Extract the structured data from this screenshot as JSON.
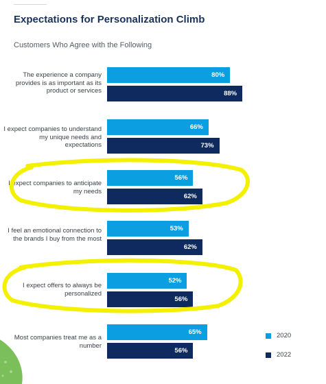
{
  "chart_data": {
    "type": "bar",
    "title": "Expectations for Personalization Climb",
    "subtitle": "Customers Who Agree with the Following",
    "categories": [
      "The experience a company provides is as important as its product or services",
      "I expect companies to understand my unique needs and expectations",
      "I expect companies to anticipate my needs",
      "I feel an emotional connection to the brands I buy from the most",
      "I expect offers to always be personalized",
      "Most companies treat me as a number"
    ],
    "series": [
      {
        "name": "2020",
        "values": [
          80,
          66,
          56,
          53,
          52,
          65
        ],
        "labels": [
          "80%",
          "66%",
          "56%",
          "53%",
          "52%",
          "65%"
        ]
      },
      {
        "name": "2022",
        "values": [
          88,
          73,
          62,
          62,
          56,
          56
        ],
        "labels": [
          "88%",
          "73%",
          "62%",
          "62%",
          "56%",
          "56%"
        ]
      }
    ],
    "xlim": [
      0,
      100
    ],
    "legend_position": "bottom-right",
    "colors": {
      "2020": "#0b9ee0",
      "2022": "#0e2a5e",
      "highlight": "#f3f000"
    },
    "highlighted_categories": [
      2,
      4
    ]
  }
}
